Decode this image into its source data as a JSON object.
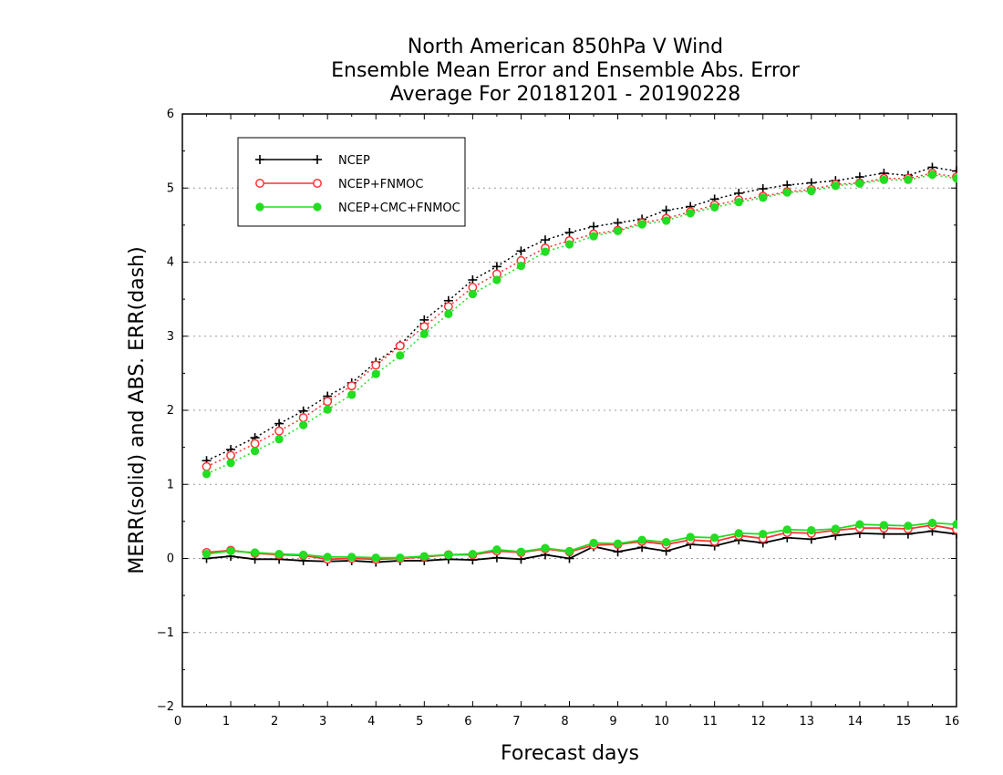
{
  "chart_data": {
    "type": "line",
    "title": [
      "North American 850hPa V Wind",
      "Ensemble Mean Error and Ensemble Abs. Error",
      "Average For 20181201 - 20190228"
    ],
    "xlabel": "Forecast days",
    "ylabel": "MERR(solid) and ABS. ERR(dash)",
    "xlim": [
      0,
      16
    ],
    "ylim": [
      -2,
      6
    ],
    "xticks": [
      "0",
      "1",
      "2",
      "3",
      "4",
      "5",
      "6",
      "7",
      "8",
      "9",
      "10",
      "11",
      "12",
      "13",
      "14",
      "15",
      "16"
    ],
    "yticks": [
      "-2",
      "-1",
      "0",
      "1",
      "2",
      "3",
      "4",
      "5",
      "6"
    ],
    "grid": "horizontal dotted",
    "legend_position": "top-left",
    "x": [
      0.5,
      1,
      1.5,
      2,
      2.5,
      3,
      3.5,
      4,
      4.5,
      5,
      5.5,
      6,
      6.5,
      7,
      7.5,
      8,
      8.5,
      9,
      9.5,
      10,
      10.5,
      11,
      11.5,
      12,
      12.5,
      13,
      13.5,
      14,
      14.5,
      15,
      15.5,
      16
    ],
    "series": [
      {
        "name": "NCEP",
        "color": "#000000",
        "marker": "plus",
        "abs_err": [
          1.32,
          1.47,
          1.63,
          1.82,
          1.99,
          2.19,
          2.37,
          2.65,
          2.88,
          3.22,
          3.48,
          3.76,
          3.94,
          4.15,
          4.3,
          4.4,
          4.48,
          4.53,
          4.58,
          4.7,
          4.75,
          4.85,
          4.93,
          4.99,
          5.04,
          5.07,
          5.1,
          5.15,
          5.2,
          5.17,
          5.28,
          5.23
        ],
        "mean_err": [
          0.0,
          0.03,
          -0.01,
          -0.01,
          -0.03,
          -0.04,
          -0.03,
          -0.05,
          -0.03,
          -0.03,
          -0.01,
          -0.02,
          0.01,
          -0.01,
          0.05,
          0.0,
          0.16,
          0.09,
          0.15,
          0.1,
          0.19,
          0.17,
          0.25,
          0.21,
          0.28,
          0.26,
          0.31,
          0.34,
          0.33,
          0.33,
          0.37,
          0.33
        ]
      },
      {
        "name": "NCEP+FNMOC",
        "color": "#ff3333",
        "marker": "open-circle",
        "abs_err": [
          1.24,
          1.39,
          1.55,
          1.72,
          1.9,
          2.12,
          2.33,
          2.61,
          2.87,
          3.13,
          3.4,
          3.66,
          3.84,
          4.02,
          4.19,
          4.29,
          4.38,
          4.43,
          4.53,
          4.59,
          4.68,
          4.77,
          4.84,
          4.89,
          4.95,
          4.98,
          5.05,
          5.07,
          5.13,
          5.13,
          5.2,
          5.15
        ],
        "mean_err": [
          0.08,
          0.11,
          0.07,
          0.05,
          0.04,
          -0.01,
          0.0,
          -0.01,
          0.0,
          0.02,
          0.05,
          0.05,
          0.1,
          0.08,
          0.13,
          0.09,
          0.18,
          0.19,
          0.23,
          0.19,
          0.25,
          0.23,
          0.31,
          0.27,
          0.35,
          0.34,
          0.38,
          0.41,
          0.41,
          0.4,
          0.45,
          0.39
        ]
      },
      {
        "name": "NCEP+CMC+FNMOC",
        "color": "#22dd22",
        "marker": "filled-circle",
        "abs_err": [
          1.14,
          1.29,
          1.45,
          1.61,
          1.8,
          2.01,
          2.21,
          2.49,
          2.74,
          3.03,
          3.3,
          3.57,
          3.76,
          3.95,
          4.14,
          4.24,
          4.35,
          4.42,
          4.51,
          4.56,
          4.66,
          4.74,
          4.81,
          4.87,
          4.94,
          4.96,
          5.03,
          5.06,
          5.11,
          5.11,
          5.18,
          5.13
        ],
        "mean_err": [
          0.06,
          0.1,
          0.08,
          0.06,
          0.05,
          0.02,
          0.02,
          0.01,
          0.01,
          0.03,
          0.05,
          0.06,
          0.12,
          0.09,
          0.14,
          0.1,
          0.21,
          0.2,
          0.25,
          0.22,
          0.29,
          0.28,
          0.34,
          0.33,
          0.39,
          0.38,
          0.4,
          0.46,
          0.45,
          0.44,
          0.48,
          0.46
        ]
      }
    ]
  }
}
